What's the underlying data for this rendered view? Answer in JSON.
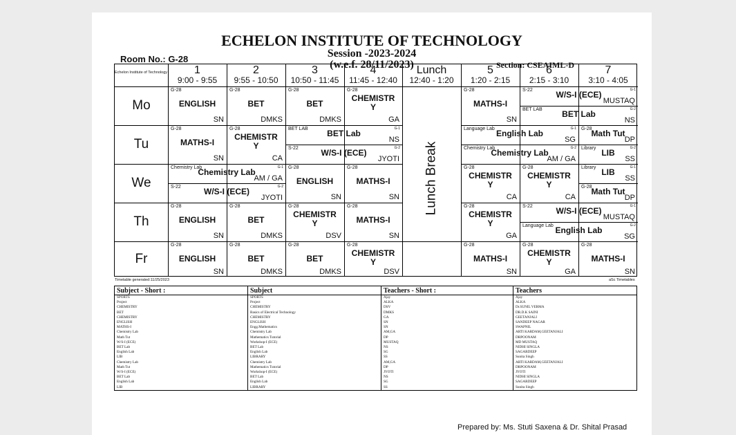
{
  "header": {
    "institute": "ECHELON INSTITUTE OF TECHNOLOGY",
    "session": "Session -2023-2024",
    "wef": "(w.e.f. 28/11/2023)",
    "room": "Room No.: G-28",
    "section": "Section: CSEAIML-D",
    "small_label": "Echelon Institute of Technology"
  },
  "periods": [
    {
      "num": "1",
      "time": "9:00 - 9:55"
    },
    {
      "num": "2",
      "time": "9:55 - 10:50"
    },
    {
      "num": "3",
      "time": "10:50 - 11:45"
    },
    {
      "num": "4",
      "time": "11:45 - 12:40"
    },
    {
      "num": "Lunch",
      "time": "12:40 - 1:20"
    },
    {
      "num": "5",
      "time": "1:20 - 2:15"
    },
    {
      "num": "6",
      "time": "2:15 - 3:10"
    },
    {
      "num": "7",
      "time": "3:10 - 4:05"
    }
  ],
  "days": [
    "Mo",
    "Tu",
    "We",
    "Th",
    "Fr"
  ],
  "lunch_break": "Lunch Break",
  "cells": {
    "mo1": {
      "room": "G-28",
      "subj": "ENGLISH",
      "tch": "SN"
    },
    "mo2": {
      "room": "G-28",
      "subj": "BET",
      "tch": "DMKS"
    },
    "mo3": {
      "room": "G-28",
      "subj": "BET",
      "tch": "DMKS"
    },
    "mo4": {
      "room": "G-28",
      "subj": "CHEMISTR",
      "subj2": "Y",
      "tch": "GA"
    },
    "mo5": {
      "room": "G-28",
      "subj": "MATHS-I",
      "tch": "SN"
    },
    "mo67a": {
      "room": "S-22",
      "subj": "W/S-I (ECE)",
      "tch": "MUSTAQ",
      "num": "G-1"
    },
    "mo67b": {
      "room": "BET LAB",
      "subj": "BET Lab",
      "tch": "NS",
      "num": "G-2"
    },
    "tu1": {
      "room": "G-28",
      "subj": "MATHS-I",
      "tch": "SN"
    },
    "tu2": {
      "room": "G-28",
      "subj": "CHEMISTR",
      "subj2": "Y",
      "tch": "CA"
    },
    "tu34a": {
      "room": "BET LAB",
      "subj": "BET Lab",
      "tch": "NS",
      "num": "G-1"
    },
    "tu34b": {
      "room": "S-22",
      "subj": "W/S-I (ECE)",
      "tch": "JYOTI",
      "num": "G-2"
    },
    "tu56a": {
      "room": "Language Lab",
      "subj": "English Lab",
      "tch": "SG",
      "num": "G-1"
    },
    "tu56b": {
      "room": "Chemistry Lab",
      "subj": "Chemistry Lab",
      "tch": "AM / GA",
      "num": "G-2"
    },
    "tu7a": {
      "room": "G-28",
      "subj": "Math Tut",
      "tch": "DP"
    },
    "tu7b": {
      "room": "Library",
      "subj": "LIB",
      "tch": "SS",
      "num": "G-2"
    },
    "we12a": {
      "room": "Chemistry Lab",
      "subj": "Chemistry Lab",
      "tch": "AM / GA",
      "num": "G-1"
    },
    "we12b": {
      "room": "S-22",
      "subj": "W/S-I (ECE)",
      "tch": "JYOTI",
      "num": "G-2"
    },
    "we3": {
      "room": "G-28",
      "subj": "ENGLISH",
      "tch": "SN"
    },
    "we4": {
      "room": "G-28",
      "subj": "MATHS-I",
      "tch": "SN"
    },
    "we5": {
      "room": "G-28",
      "subj": "CHEMISTR",
      "subj2": "Y",
      "tch": "CA"
    },
    "we6": {
      "room": "G-28",
      "subj": "CHEMISTR",
      "subj2": "Y",
      "tch": "CA"
    },
    "we7a": {
      "room": "Library",
      "subj": "LIB",
      "tch": "SS",
      "num": "G-1"
    },
    "we7b": {
      "room": "G-28",
      "subj": "Math Tut",
      "tch": "DP"
    },
    "th1": {
      "room": "G-28",
      "subj": "ENGLISH",
      "tch": "SN"
    },
    "th2": {
      "room": "G-28",
      "subj": "BET",
      "tch": "DMKS"
    },
    "th3": {
      "room": "G-28",
      "subj": "CHEMISTR",
      "subj2": "Y",
      "tch": "DSV"
    },
    "th4": {
      "room": "G-28",
      "subj": "MATHS-I",
      "tch": "SN"
    },
    "th5": {
      "room": "G-28",
      "subj": "CHEMISTR",
      "subj2": "Y",
      "tch": "GA"
    },
    "th67a": {
      "room": "S-22",
      "subj": "W/S-I (ECE)",
      "tch": "MUSTAQ",
      "num": "G-1"
    },
    "th67b": {
      "room": "Language Lab",
      "subj": "English Lab",
      "tch": "SG",
      "num": "G-2"
    },
    "fr1": {
      "room": "G-28",
      "subj": "ENGLISH",
      "tch": "SN"
    },
    "fr2": {
      "room": "G-28",
      "subj": "BET",
      "tch": "DMKS"
    },
    "fr3": {
      "room": "G-28",
      "subj": "BET",
      "tch": "DMKS"
    },
    "fr4": {
      "room": "G-28",
      "subj": "CHEMISTR",
      "subj2": "Y",
      "tch": "DSV"
    },
    "fr5": {
      "room": "G-28",
      "subj": "MATHS-I",
      "tch": "SN"
    },
    "fr6": {
      "room": "G-28",
      "subj": "CHEMISTR",
      "subj2": "Y",
      "tch": "GA"
    },
    "fr7": {
      "room": "G-28",
      "subj": "MATHS-I",
      "tch": "SN"
    }
  },
  "generated": "Timetable generated:11/25/2023",
  "asc": "aSc Timetables",
  "legend": {
    "headers": [
      "Subject - Short :",
      "Subject",
      "Teachers - Short :",
      "Teachers"
    ],
    "rows": [
      [
        "SPORTS",
        "SPORTS",
        "Ajay",
        "Ajay"
      ],
      [
        "Project",
        "Project",
        "ALKA",
        "ALKA"
      ],
      [
        "CHEMISTRY",
        "CHEMISTRY",
        "DSV",
        "Dr.SUNIL VERMA"
      ],
      [
        "BET",
        "Basics of Electrical Technology",
        "DMKS",
        "DR.D.K SAINI"
      ],
      [
        "CHEMISTRY",
        "CHEMISTRY",
        "GA",
        "GEETANJALI"
      ],
      [
        "ENGLISH",
        "ENGLISH",
        "SN",
        "SANDEEP NAGAR"
      ],
      [
        "MATHS-I",
        "Engg.Mathematics",
        "SN",
        "SWAPNIL"
      ],
      [
        "Chemistry Lab",
        "Chemistry Lab",
        "AM,GA",
        "ARTI KARDAM,GEETANJALI"
      ],
      [
        "Math Tut",
        "Mathematics Tutorial",
        "DP",
        "DRPOONAM"
      ],
      [
        "W/S-I (ECE)",
        "Workshop-I (ECE)",
        "MUSTAQ",
        "MD MUSTAQ"
      ],
      [
        "BET Lab",
        "BET Lab",
        "NS",
        "NIDHI SINGLA"
      ],
      [
        "English Lab",
        "English Lab",
        "SG",
        "SAGARDEEP"
      ],
      [
        "LIB",
        "LIBRARY",
        "SS",
        "Sunita Singh"
      ],
      [
        "Chemistry Lab",
        "Chemistry Lab",
        "AM,GA",
        "ARTI KARDAM,GEETANJALI"
      ],
      [
        "Math Tut",
        "Mathematics Tutorial",
        "DP",
        "DRPOONAM"
      ],
      [
        "W/S-I (ECE)",
        "Workshop-I (ECE)",
        "JYOTI",
        "JYOTI"
      ],
      [
        "BET Lab",
        "BET Lab",
        "NS",
        "NIDHI SINGLA"
      ],
      [
        "English Lab",
        "English Lab",
        "SG",
        "SAGARDEEP"
      ],
      [
        "LIB",
        "LIBRARY",
        "SS",
        "Sunita Singh"
      ]
    ]
  },
  "footer": {
    "prepared_by": "Prepared by: Ms. Stuti Saxena & Dr. Shital Prasad"
  }
}
